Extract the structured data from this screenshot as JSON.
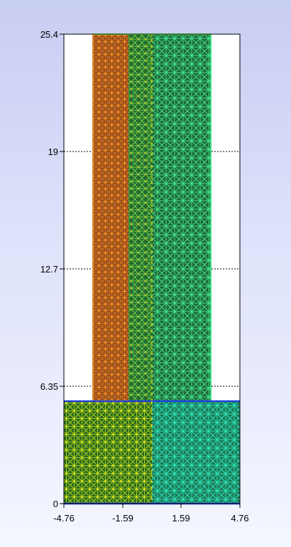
{
  "axes": {
    "x_ticks": [
      "-4.76",
      "-1.59",
      "1.59",
      "4.76"
    ],
    "y_ticks": [
      "25.4",
      "19",
      "12.7",
      "6.35",
      "0"
    ],
    "x_range": [
      -4.76,
      4.76
    ],
    "y_range": [
      0,
      25.4
    ],
    "gridlines": "dotted horizontal at y ticks",
    "frame_color": "#000000"
  },
  "mesh": {
    "upper_column": {
      "x_range": [
        -3.0,
        3.2
      ],
      "y_range": [
        5.6,
        25.4
      ]
    },
    "lower_block": {
      "x_range": [
        -4.76,
        4.76
      ],
      "y_range": [
        0,
        5.6
      ]
    },
    "colors": {
      "orange": "#d86a1e",
      "green_dark": "#2f8a3a",
      "green_light": "#3fe08a",
      "teal": "#2be0b8",
      "yellow": "#e8e020",
      "blue_edge": "#2040d8"
    }
  }
}
